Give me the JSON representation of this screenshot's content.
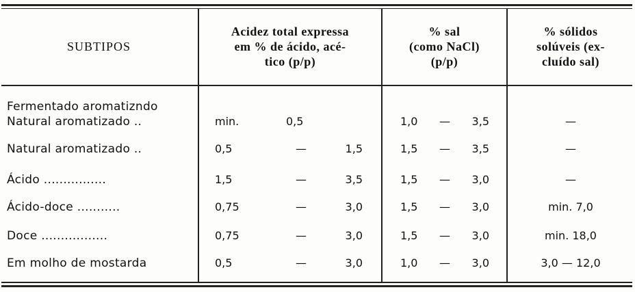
{
  "table": {
    "header": [
      [
        "SUBTIPOS"
      ],
      [
        "Acidez total expressa",
        "em % de ácido, acé-",
        "tico (p/p)"
      ],
      [
        "% sal",
        "(como NaCl)",
        "(p/p)"
      ],
      [
        "% sólidos",
        "solúveis (ex-",
        "cluído sal)"
      ]
    ],
    "rows": [
      {
        "subtipo": [
          "Fermentado aromatizndo",
          "Natural aromatizado .."
        ],
        "acidez": [
          "min.",
          "0,5"
        ],
        "sal": [
          "1,0",
          "—",
          "3,5"
        ],
        "solidos": "—"
      },
      {
        "subtipo": [
          "Natural aromatizado .."
        ],
        "acidez": [
          "0,5",
          "—",
          "1,5"
        ],
        "sal": [
          "1,5",
          "—",
          "3,5"
        ],
        "solidos": "—"
      },
      {
        "subtipo": [
          "Ácido ................"
        ],
        "acidez": [
          "1,5",
          "—",
          "3,5"
        ],
        "sal": [
          "1,5",
          "—",
          "3,0"
        ],
        "solidos": "—"
      },
      {
        "subtipo": [
          "Ácido-doce ..........."
        ],
        "acidez": [
          "0,75",
          "—",
          "3,0"
        ],
        "sal": [
          "1,5",
          "—",
          "3,0"
        ],
        "solidos": "min. 7,0"
      },
      {
        "subtipo": [
          "Doce ................."
        ],
        "acidez": [
          "0,75",
          "—",
          "3,0"
        ],
        "sal": [
          "1,5",
          "—",
          "3,0"
        ],
        "solidos": "min. 18,0"
      },
      {
        "subtipo": [
          "Em molho de mostarda"
        ],
        "acidez": [
          "0,5",
          "—",
          "3,0"
        ],
        "sal": [
          "1,0",
          "—",
          "3,0"
        ],
        "solidos": "3,0 — 12,0"
      }
    ]
  }
}
